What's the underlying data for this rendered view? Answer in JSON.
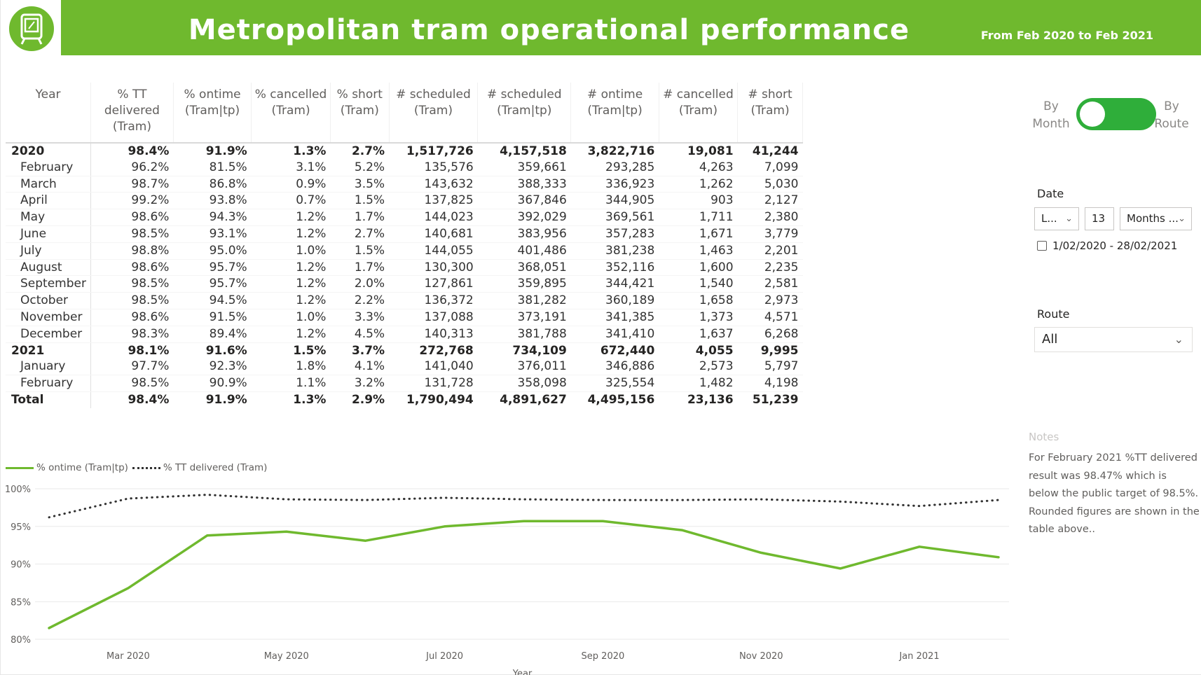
{
  "header": {
    "title": "Metropolitan tram operational performance",
    "date_range": "From Feb 2020 to Feb 2021"
  },
  "colors": {
    "brand_green": "#6fb92e",
    "toggle_green": "#2fae3a",
    "dotted_line": "#323232"
  },
  "icons": {
    "logo": "tram-icon"
  },
  "table": {
    "headers": [
      "Year",
      "% TT delivered (Tram)",
      "% ontime (Tram|tp)",
      "% cancelled (Tram)",
      "% short (Tram)",
      "# scheduled (Tram)",
      "# scheduled (Tram|tp)",
      "# ontime (Tram|tp)",
      "# cancelled (Tram)",
      "# short (Tram)"
    ],
    "rows": [
      {
        "type": "group",
        "cells": [
          "2020",
          "98.4%",
          "91.9%",
          "1.3%",
          "2.7%",
          "1,517,726",
          "4,157,518",
          "3,822,716",
          "19,081",
          "41,244"
        ]
      },
      {
        "type": "sub",
        "cells": [
          "February",
          "96.2%",
          "81.5%",
          "3.1%",
          "5.2%",
          "135,576",
          "359,661",
          "293,285",
          "4,263",
          "7,099"
        ]
      },
      {
        "type": "sub",
        "cells": [
          "March",
          "98.7%",
          "86.8%",
          "0.9%",
          "3.5%",
          "143,632",
          "388,333",
          "336,923",
          "1,262",
          "5,030"
        ]
      },
      {
        "type": "sub",
        "cells": [
          "April",
          "99.2%",
          "93.8%",
          "0.7%",
          "1.5%",
          "137,825",
          "367,846",
          "344,905",
          "903",
          "2,127"
        ]
      },
      {
        "type": "sub",
        "cells": [
          "May",
          "98.6%",
          "94.3%",
          "1.2%",
          "1.7%",
          "144,023",
          "392,029",
          "369,561",
          "1,711",
          "2,380"
        ]
      },
      {
        "type": "sub",
        "cells": [
          "June",
          "98.5%",
          "93.1%",
          "1.2%",
          "2.7%",
          "140,681",
          "383,956",
          "357,283",
          "1,671",
          "3,779"
        ]
      },
      {
        "type": "sub",
        "cells": [
          "July",
          "98.8%",
          "95.0%",
          "1.0%",
          "1.5%",
          "144,055",
          "401,486",
          "381,238",
          "1,463",
          "2,201"
        ]
      },
      {
        "type": "sub",
        "cells": [
          "August",
          "98.6%",
          "95.7%",
          "1.2%",
          "1.7%",
          "130,300",
          "368,051",
          "352,116",
          "1,600",
          "2,235"
        ]
      },
      {
        "type": "sub",
        "cells": [
          "September",
          "98.5%",
          "95.7%",
          "1.2%",
          "2.0%",
          "127,861",
          "359,895",
          "344,421",
          "1,540",
          "2,581"
        ]
      },
      {
        "type": "sub",
        "cells": [
          "October",
          "98.5%",
          "94.5%",
          "1.2%",
          "2.2%",
          "136,372",
          "381,282",
          "360,189",
          "1,658",
          "2,973"
        ]
      },
      {
        "type": "sub",
        "cells": [
          "November",
          "98.6%",
          "91.5%",
          "1.0%",
          "3.3%",
          "137,088",
          "373,191",
          "341,385",
          "1,373",
          "4,571"
        ]
      },
      {
        "type": "sub",
        "cells": [
          "December",
          "98.3%",
          "89.4%",
          "1.2%",
          "4.5%",
          "140,313",
          "381,788",
          "341,410",
          "1,637",
          "6,268"
        ]
      },
      {
        "type": "group",
        "cells": [
          "2021",
          "98.1%",
          "91.6%",
          "1.5%",
          "3.7%",
          "272,768",
          "734,109",
          "672,440",
          "4,055",
          "9,995"
        ]
      },
      {
        "type": "sub",
        "cells": [
          "January",
          "97.7%",
          "92.3%",
          "1.8%",
          "4.1%",
          "141,040",
          "376,011",
          "346,886",
          "2,573",
          "5,797"
        ]
      },
      {
        "type": "sub",
        "cells": [
          "February",
          "98.5%",
          "90.9%",
          "1.1%",
          "3.2%",
          "131,728",
          "358,098",
          "325,554",
          "1,482",
          "4,198"
        ]
      },
      {
        "type": "total",
        "cells": [
          "Total",
          "98.4%",
          "91.9%",
          "1.3%",
          "2.9%",
          "1,790,494",
          "4,891,627",
          "4,495,156",
          "23,136",
          "51,239"
        ]
      }
    ]
  },
  "toggle": {
    "left_label_1": "By",
    "left_label_2": "Month",
    "right_label_1": "By",
    "right_label_2": "Route"
  },
  "date_slicer": {
    "label": "Date",
    "relative": "L...",
    "count": "13",
    "unit": "Months ...",
    "range": "1/02/2020 - 28/02/2021"
  },
  "route_slicer": {
    "label": "Route",
    "value": "All"
  },
  "notes": {
    "title": "Notes",
    "text": "For February 2021 %TT delivered result was 98.47% which is below the public target of 98.5%. Rounded figures are shown in the table above.."
  },
  "chart_data": {
    "type": "line",
    "xlabel": "Year",
    "ylabel": "",
    "x": [
      "Feb 2020",
      "Mar 2020",
      "Apr 2020",
      "May 2020",
      "Jun 2020",
      "Jul 2020",
      "Aug 2020",
      "Sep 2020",
      "Oct 2020",
      "Nov 2020",
      "Dec 2020",
      "Jan 2021",
      "Feb 2021"
    ],
    "x_tick_labels": [
      "Mar 2020",
      "May 2020",
      "Jul 2020",
      "Sep 2020",
      "Nov 2020",
      "Jan 2021"
    ],
    "x_tick_indices": [
      1,
      3,
      5,
      7,
      9,
      11
    ],
    "y_ticks": [
      "80%",
      "85%",
      "90%",
      "95%",
      "100%"
    ],
    "y_tick_values": [
      80,
      85,
      90,
      95,
      100
    ],
    "ylim": [
      80,
      100
    ],
    "grid": true,
    "legend_position": "top-left",
    "series": [
      {
        "name": "% ontime (Tram|tp)",
        "style": "solid",
        "color": "#6fb92e",
        "values": [
          81.5,
          86.8,
          93.8,
          94.3,
          93.1,
          95.0,
          95.7,
          95.7,
          94.5,
          91.5,
          89.4,
          92.3,
          90.9
        ]
      },
      {
        "name": "% TT delivered (Tram)",
        "style": "dotted",
        "color": "#323232",
        "values": [
          96.2,
          98.7,
          99.2,
          98.6,
          98.5,
          98.8,
          98.6,
          98.5,
          98.5,
          98.6,
          98.3,
          97.7,
          98.5
        ]
      }
    ]
  }
}
